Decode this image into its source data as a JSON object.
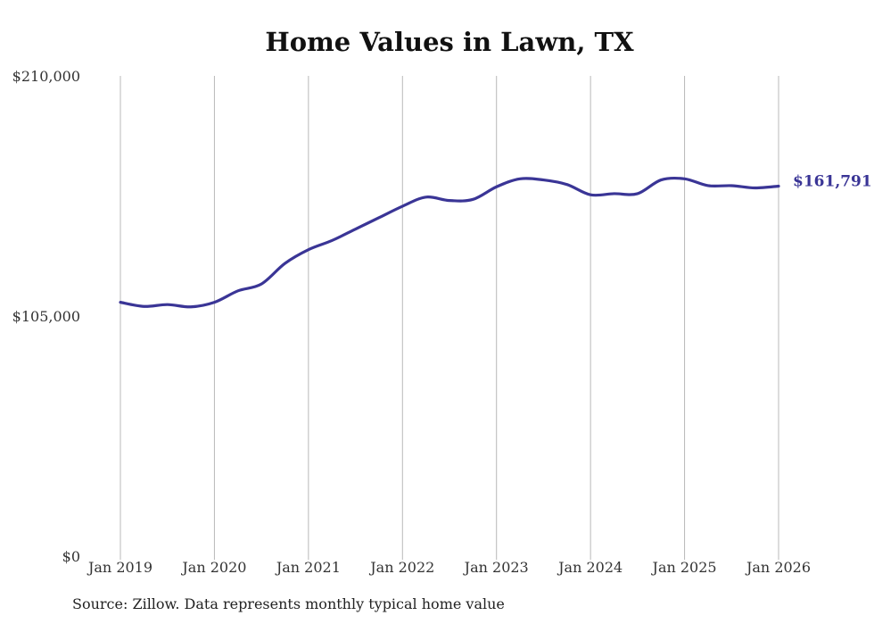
{
  "chart_data": {
    "type": "line",
    "title": "Home Values in Lawn, TX",
    "xlabel": "",
    "ylabel": "",
    "ylim": [
      0,
      210000
    ],
    "y_ticks": [
      0,
      105000,
      210000
    ],
    "y_tick_labels": [
      "$0",
      "$105,000",
      "$210,000"
    ],
    "x_tick_labels": [
      "Jan 2019",
      "Jan 2020",
      "Jan 2021",
      "Jan 2022",
      "Jan 2023",
      "Jan 2024",
      "Jan 2025",
      "Jan 2026"
    ],
    "x_range": [
      2019.0,
      2026.0
    ],
    "grid": "vertical",
    "series": [
      {
        "name": "Typical home value",
        "color": "#3a3596",
        "x": [
          2019.0,
          2019.25,
          2019.5,
          2019.75,
          2020.0,
          2020.25,
          2020.5,
          2020.75,
          2021.0,
          2021.25,
          2021.5,
          2021.75,
          2022.0,
          2022.25,
          2022.5,
          2022.75,
          2023.0,
          2023.25,
          2023.5,
          2023.75,
          2024.0,
          2024.25,
          2024.5,
          2024.75,
          2025.0,
          2025.25,
          2025.5,
          2025.75,
          2026.0
        ],
        "values": [
          111000,
          109200,
          110000,
          109000,
          111000,
          116000,
          119000,
          128000,
          134000,
          138000,
          143000,
          148000,
          153000,
          157000,
          155500,
          156000,
          161500,
          165000,
          164500,
          162500,
          158000,
          158500,
          158500,
          164500,
          165000,
          162000,
          162000,
          161000,
          161791
        ]
      }
    ],
    "end_label": "$161,791",
    "source": "Source: Zillow. Data represents monthly typical home value"
  }
}
